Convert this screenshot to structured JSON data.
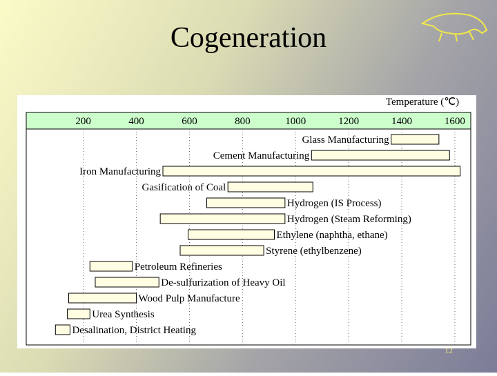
{
  "chart_data": {
    "type": "range-bar",
    "title": "Cogeneration",
    "x_label": "Temperature (℃)",
    "slide_number": "12",
    "categories": [
      "Glass Manufacturing",
      "Cement Manufacturing",
      "Iron Manufacturing",
      "Gasification of Coal",
      "Hydrogen (IS Process)",
      "Hydrogen (Steam Reforming)",
      "Ethylene (naphtha, ethane)",
      "Styrene (ethylbenzene)",
      "Petroleum Refineries",
      "De-sulfurization of Heavy Oil",
      "Wood Pulp Manufacture",
      "Urea Synthesis",
      "Desalination, District Heating"
    ],
    "start": [
      1360,
      1060,
      500,
      745,
      665,
      490,
      595,
      565,
      225,
      245,
      145,
      140,
      95
    ],
    "end": [
      1540,
      1580,
      1620,
      1065,
      960,
      960,
      920,
      880,
      385,
      485,
      400,
      225,
      150
    ],
    "color": "#fffde2",
    "header_color": "#ccffcc",
    "xlim": [
      -15,
      1660
    ],
    "xticks": [
      200,
      400,
      600,
      800,
      1000,
      1200,
      1400,
      1600
    ],
    "grid": true
  }
}
